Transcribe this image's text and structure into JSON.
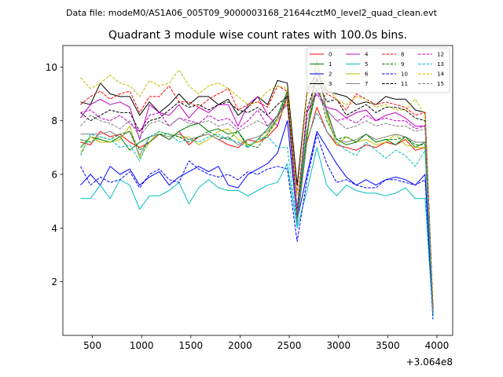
{
  "figure": {
    "subtitle": "Data file: modeM0/AS1A06_005T09_9000003168_21644cztM0_level2_quad_clean.evt",
    "title": "Quadrant 3 module wise count rates with 100.0s bins."
  },
  "chart_data": {
    "type": "line",
    "title": "Quadrant 3 module wise count rates with 100.0s bins.",
    "xlabel": "",
    "ylabel": "",
    "x_offset_label": "+3.064e8",
    "xlim": [
      200,
      4160
    ],
    "ylim": [
      0,
      10.8
    ],
    "xticks": [
      500,
      1000,
      1500,
      2000,
      2500,
      3000,
      3500,
      4000
    ],
    "xtick_labels": [
      "500",
      "1000",
      "1500",
      "2000",
      "2500",
      "3000",
      "3500",
      "4000"
    ],
    "yticks": [
      2,
      4,
      6,
      8,
      10
    ],
    "ytick_labels": [
      "2",
      "4",
      "6",
      "8",
      "10"
    ],
    "grid": false,
    "legend_position": "top-right",
    "x": [
      380,
      480,
      580,
      680,
      780,
      880,
      980,
      1080,
      1180,
      1280,
      1380,
      1480,
      1580,
      1680,
      1780,
      1880,
      1980,
      2080,
      2180,
      2280,
      2380,
      2480,
      2580,
      2680,
      2780,
      2880,
      2980,
      3080,
      3180,
      3280,
      3380,
      3480,
      3580,
      3680,
      3780,
      3880,
      3960
    ],
    "series": [
      {
        "name": "0",
        "color": "#ff0000",
        "dash": "solid",
        "values": [
          7.2,
          7.1,
          7.6,
          7.4,
          7.5,
          7.2,
          7.0,
          7.2,
          7.5,
          7.3,
          7.6,
          7.1,
          7.4,
          7.5,
          7.3,
          7.1,
          7.0,
          7.3,
          7.2,
          7.4,
          7.8,
          8.9,
          4.2,
          7.2,
          8.5,
          7.6,
          7.1,
          7.0,
          6.9,
          7.1,
          7.0,
          7.2,
          7.1,
          7.3,
          6.9,
          7.0,
          0.9
        ]
      },
      {
        "name": "1",
        "color": "#008000",
        "dash": "solid",
        "values": [
          7.0,
          7.4,
          7.3,
          7.2,
          7.4,
          6.9,
          7.2,
          7.4,
          7.5,
          7.3,
          7.6,
          7.8,
          7.9,
          7.6,
          7.7,
          7.5,
          7.6,
          7.0,
          7.3,
          7.7,
          8.2,
          9.1,
          4.5,
          7.6,
          9.2,
          8.4,
          7.3,
          7.1,
          7.2,
          7.5,
          7.2,
          7.3,
          7.1,
          7.4,
          7.0,
          7.2,
          0.8
        ]
      },
      {
        "name": "2",
        "color": "#0000ff",
        "dash": "solid",
        "values": [
          5.6,
          6.0,
          5.6,
          6.3,
          6.0,
          6.2,
          5.6,
          5.9,
          6.1,
          5.6,
          5.9,
          6.1,
          6.3,
          6.1,
          6.3,
          5.6,
          5.5,
          6.0,
          6.2,
          6.4,
          6.8,
          8.0,
          4.3,
          6.0,
          7.6,
          7.0,
          6.4,
          5.9,
          5.6,
          5.8,
          5.6,
          5.8,
          5.9,
          5.8,
          5.6,
          6.0,
          0.8
        ]
      },
      {
        "name": "3",
        "color": "#000000",
        "dash": "solid",
        "values": [
          8.7,
          8.6,
          9.4,
          9.0,
          8.9,
          8.9,
          8.2,
          8.7,
          8.3,
          8.6,
          9.0,
          8.6,
          8.9,
          8.9,
          8.6,
          8.8,
          8.2,
          8.5,
          8.9,
          8.6,
          9.5,
          9.4,
          5.6,
          9.1,
          9.8,
          9.1,
          9.0,
          8.9,
          8.6,
          8.7,
          8.6,
          8.9,
          8.8,
          8.8,
          8.4,
          8.3,
          1.1
        ]
      },
      {
        "name": "4",
        "color": "#bf00bf",
        "dash": "solid",
        "values": [
          8.1,
          8.6,
          8.8,
          8.6,
          8.7,
          8.5,
          7.3,
          8.6,
          8.3,
          8.2,
          8.6,
          8.1,
          8.5,
          8.3,
          8.6,
          8.6,
          7.8,
          8.6,
          8.9,
          8.2,
          7.8,
          9.0,
          4.7,
          8.3,
          9.1,
          8.5,
          8.4,
          8.1,
          8.3,
          8.4,
          8.0,
          8.2,
          8.3,
          8.1,
          7.8,
          7.8,
          1.0
        ]
      },
      {
        "name": "5",
        "color": "#00bfbf",
        "dash": "solid",
        "values": [
          5.1,
          5.1,
          5.6,
          5.1,
          5.8,
          5.6,
          4.7,
          5.2,
          5.2,
          5.4,
          5.7,
          4.9,
          5.5,
          5.8,
          5.5,
          5.4,
          5.4,
          5.2,
          5.4,
          5.6,
          5.7,
          6.4,
          4.0,
          5.4,
          7.0,
          5.6,
          5.2,
          5.6,
          5.4,
          5.3,
          5.3,
          5.2,
          5.3,
          5.5,
          5.1,
          5.1,
          0.7
        ]
      },
      {
        "name": "6",
        "color": "#bfbf00",
        "dash": "solid",
        "values": [
          6.8,
          7.4,
          7.2,
          7.2,
          7.3,
          7.8,
          6.6,
          7.2,
          7.6,
          7.5,
          7.4,
          7.4,
          7.1,
          7.3,
          7.6,
          7.7,
          7.3,
          7.1,
          7.2,
          7.5,
          8.0,
          8.7,
          4.4,
          7.3,
          10.2,
          8.2,
          7.1,
          7.4,
          7.2,
          7.3,
          7.1,
          7.2,
          7.5,
          7.1,
          7.0,
          7.0,
          0.9
        ]
      },
      {
        "name": "7",
        "color": "#808080",
        "dash": "solid",
        "values": [
          7.5,
          7.5,
          7.5,
          7.6,
          7.4,
          7.6,
          6.7,
          7.4,
          7.5,
          7.4,
          7.5,
          7.3,
          7.4,
          7.5,
          7.3,
          7.4,
          7.1,
          7.3,
          7.4,
          7.6,
          8.1,
          8.9,
          4.3,
          7.5,
          10.3,
          8.3,
          7.3,
          7.2,
          7.3,
          7.5,
          7.3,
          7.4,
          7.5,
          7.4,
          7.2,
          7.2,
          0.9
        ]
      },
      {
        "name": "8",
        "color": "#ff0000",
        "dash": "dashed",
        "values": [
          8.6,
          8.9,
          9.1,
          8.8,
          9.0,
          9.1,
          8.3,
          8.9,
          8.9,
          9.3,
          8.7,
          8.7,
          8.5,
          8.8,
          9.0,
          9.2,
          8.4,
          8.6,
          8.7,
          8.5,
          9.3,
          9.1,
          5.3,
          9.0,
          9.5,
          9.0,
          8.8,
          8.4,
          9.0,
          8.8,
          8.6,
          8.7,
          8.6,
          8.5,
          8.2,
          8.3,
          1.0
        ]
      },
      {
        "name": "9",
        "color": "#008000",
        "dash": "dashed",
        "values": [
          7.3,
          7.2,
          7.4,
          7.3,
          7.5,
          7.6,
          6.9,
          7.2,
          7.5,
          7.5,
          7.4,
          7.2,
          7.4,
          7.6,
          7.4,
          7.3,
          7.6,
          7.1,
          7.0,
          7.5,
          8.1,
          9.0,
          4.4,
          7.5,
          9.5,
          8.0,
          7.3,
          7.4,
          7.2,
          7.5,
          7.2,
          7.3,
          7.3,
          7.4,
          7.1,
          7.1,
          0.8
        ]
      },
      {
        "name": "10",
        "color": "#0000ff",
        "dash": "dashed",
        "values": [
          6.3,
          5.6,
          5.9,
          5.7,
          5.8,
          6.1,
          5.5,
          6.0,
          6.2,
          5.8,
          5.7,
          6.5,
          6.2,
          6.0,
          5.9,
          6.0,
          5.8,
          6.1,
          6.0,
          6.2,
          6.3,
          6.2,
          3.5,
          5.8,
          7.5,
          6.4,
          5.7,
          5.8,
          5.6,
          5.5,
          5.5,
          5.8,
          5.8,
          5.7,
          5.6,
          5.8,
          0.6
        ]
      },
      {
        "name": "11",
        "color": "#000000",
        "dash": "dashed",
        "values": [
          8.3,
          8.0,
          8.2,
          8.4,
          8.3,
          8.3,
          7.6,
          8.0,
          8.1,
          8.4,
          8.7,
          8.5,
          8.6,
          8.4,
          8.6,
          8.7,
          8.4,
          8.3,
          8.5,
          8.2,
          8.6,
          8.9,
          4.6,
          8.4,
          9.6,
          8.7,
          8.8,
          8.2,
          8.4,
          8.6,
          8.3,
          8.5,
          8.5,
          8.4,
          8.1,
          8.0,
          1.0
        ]
      },
      {
        "name": "12",
        "color": "#bf00bf",
        "dash": "dashed",
        "values": [
          8.3,
          8.4,
          8.1,
          8.0,
          8.2,
          7.9,
          7.6,
          8.2,
          8.3,
          7.8,
          8.1,
          8.0,
          7.9,
          8.2,
          8.0,
          8.1,
          7.7,
          8.0,
          8.4,
          7.8,
          8.2,
          8.6,
          4.5,
          8.3,
          9.0,
          8.4,
          8.0,
          8.1,
          7.9,
          8.2,
          8.0,
          8.1,
          8.0,
          8.0,
          7.7,
          7.8,
          0.9
        ]
      },
      {
        "name": "13",
        "color": "#00bfbf",
        "dash": "dashed",
        "values": [
          6.7,
          7.5,
          7.4,
          7.3,
          7.0,
          7.1,
          6.5,
          7.4,
          7.6,
          7.5,
          7.2,
          7.3,
          7.2,
          7.4,
          7.5,
          7.3,
          7.2,
          7.0,
          7.3,
          7.4,
          7.0,
          7.0,
          4.1,
          7.3,
          8.3,
          7.6,
          7.2,
          6.9,
          6.7,
          7.2,
          6.9,
          6.6,
          6.9,
          6.7,
          6.3,
          6.9,
          0.8
        ]
      },
      {
        "name": "14",
        "color": "#bfbf00",
        "dash": "dashed",
        "values": [
          9.6,
          9.2,
          9.4,
          9.7,
          9.4,
          9.3,
          8.9,
          9.5,
          9.3,
          9.4,
          9.9,
          9.3,
          9.0,
          9.3,
          9.4,
          9.2,
          8.9,
          8.6,
          8.7,
          9.1,
          9.3,
          9.2,
          5.2,
          9.1,
          10.1,
          9.3,
          8.8,
          8.6,
          8.9,
          8.8,
          8.5,
          8.6,
          8.4,
          8.4,
          8.8,
          8.2,
          1.1
        ]
      },
      {
        "name": "15",
        "color": "#808080",
        "dash": "dashed",
        "values": [
          7.8,
          8.2,
          8.0,
          7.9,
          7.7,
          8.0,
          7.4,
          7.9,
          8.0,
          7.8,
          8.1,
          7.9,
          7.9,
          8.0,
          7.8,
          7.9,
          7.6,
          7.8,
          8.0,
          7.8,
          8.2,
          8.6,
          4.6,
          8.0,
          9.2,
          8.4,
          8.0,
          7.7,
          7.8,
          8.0,
          7.8,
          7.9,
          7.8,
          7.8,
          7.6,
          7.7,
          0.9
        ]
      }
    ]
  }
}
